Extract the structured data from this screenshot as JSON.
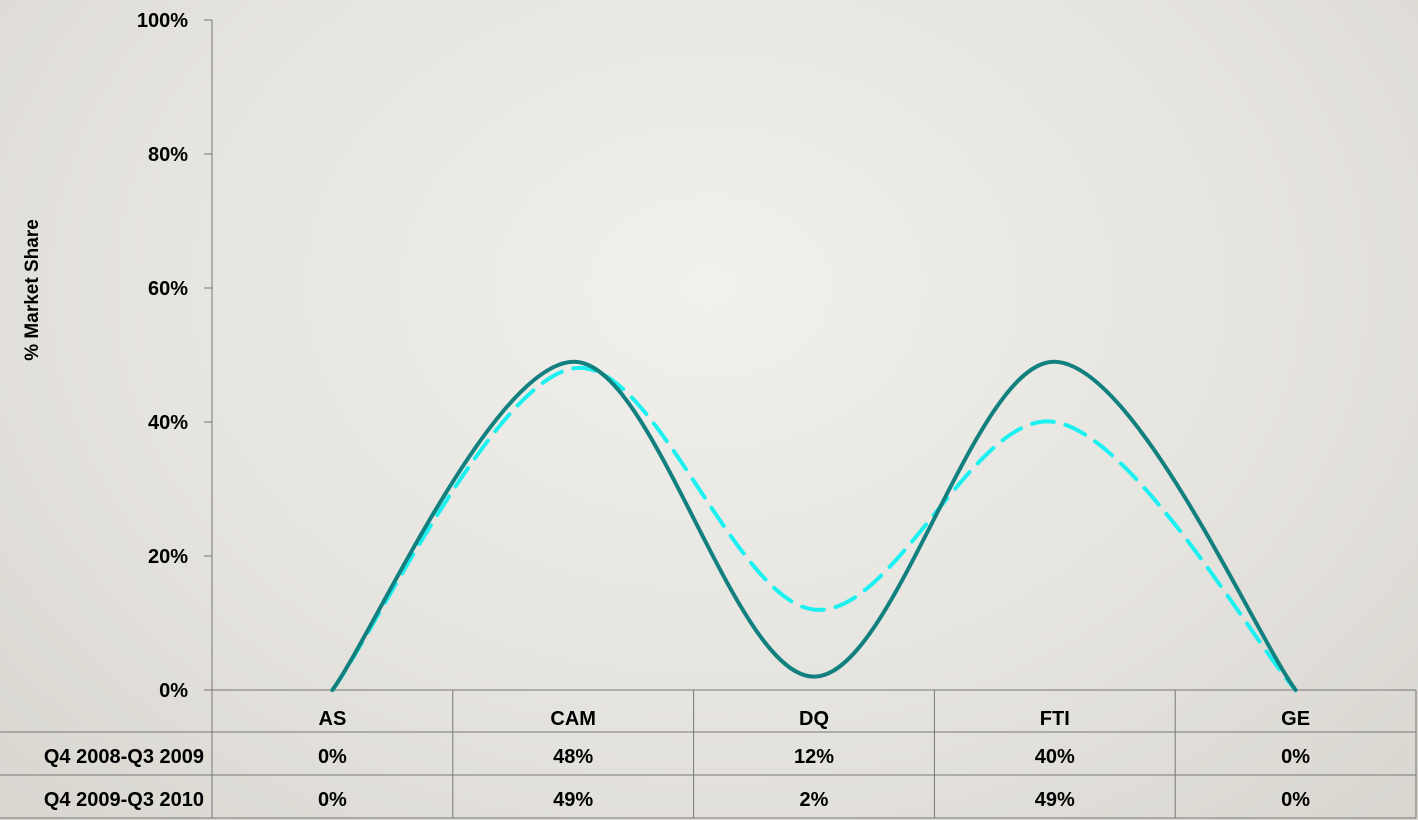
{
  "chart_data": {
    "type": "line",
    "categories": [
      "AS",
      "CAM",
      "DQ",
      "FTI",
      "GE"
    ],
    "series": [
      {
        "name": "Q4 2008-Q3 2009",
        "values": [
          0,
          48,
          12,
          40,
          0
        ],
        "color": "#1cf0f0",
        "style": "dashed"
      },
      {
        "name": "Q4 2009-Q3 2010",
        "values": [
          0,
          49,
          2,
          49,
          0
        ],
        "color": "#11807f",
        "style": "solid"
      }
    ],
    "series_labels": [
      "Q4 2008-Q3 2009",
      "Q4 2009-Q3 2010"
    ],
    "table_rows": [
      [
        "0%",
        "48%",
        "12%",
        "40%",
        "0%"
      ],
      [
        "0%",
        "49%",
        "2%",
        "49%",
        "0%"
      ]
    ],
    "ylabel": "% Market Share",
    "ylim": [
      0,
      100
    ],
    "yticks": [
      "0%",
      "20%",
      "40%",
      "60%",
      "80%",
      "100%"
    ],
    "ytick_values": [
      0,
      20,
      40,
      60,
      80,
      100
    ],
    "smooth": true,
    "grid": false,
    "legend": "data table below chart"
  }
}
